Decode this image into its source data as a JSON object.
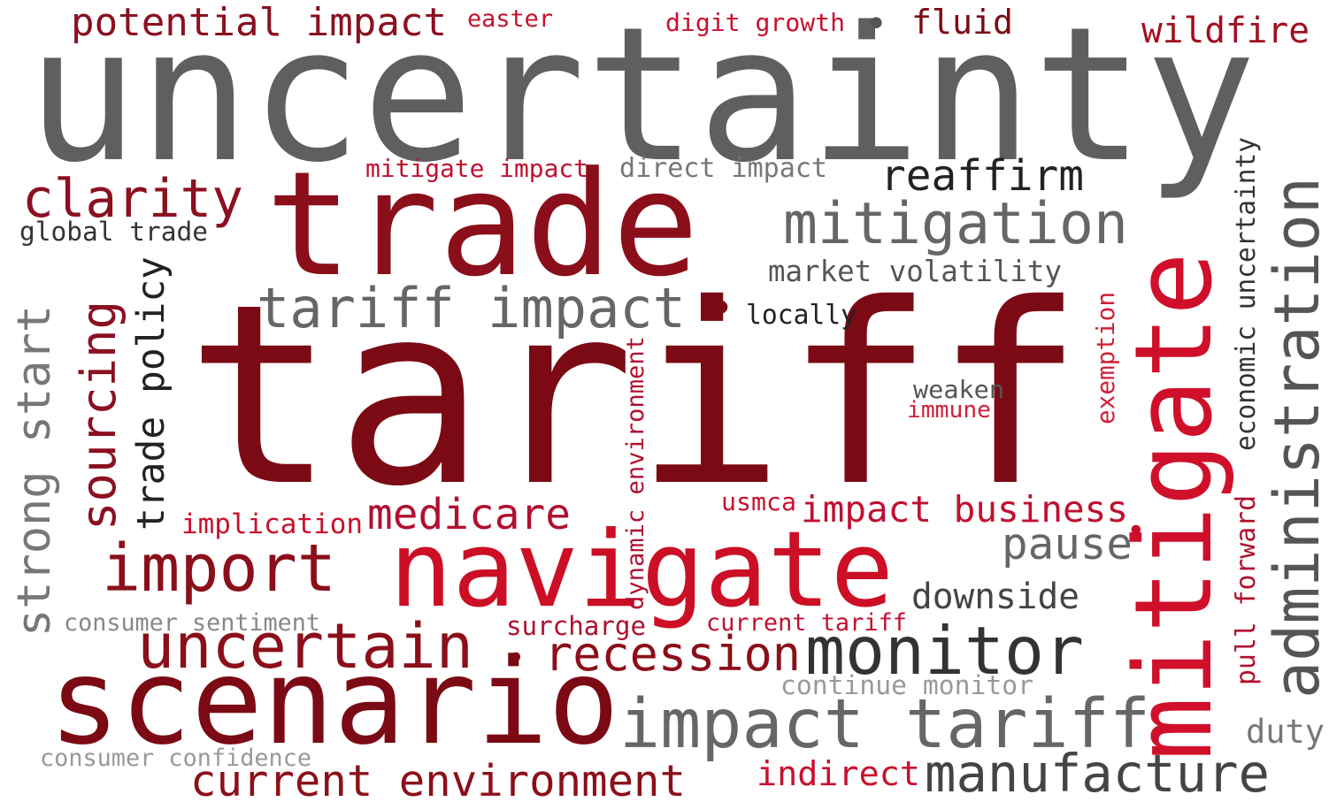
{
  "words": [
    "uncertainty",
    "tariff",
    "trade",
    "navigate",
    "scenario",
    "mitigate",
    "administration",
    "impact tariff",
    "monitor",
    "uncertain",
    "import",
    "manufacture",
    "current environment",
    "recession",
    "mitigation",
    "tariff impact",
    "clarity",
    "reaffirm",
    "potential impact",
    "fluid",
    "wildfire",
    "easter",
    "digit growth",
    "•",
    "•",
    "•",
    "•",
    "mitigate impact",
    "direct impact",
    "global trade",
    "market volatility",
    "locally",
    "trade policy",
    "sourcing",
    "strong start",
    "dynamic environment",
    "exemption",
    "economic uncertainty",
    "pull forward",
    "weaken",
    "immune",
    "implication",
    "medicare",
    "usmca",
    "impact business",
    "pause",
    "downside",
    "current tariff",
    "surcharge",
    "consumer sentiment",
    "continue monitor",
    "duty",
    "consumer confidence",
    "indirect"
  ]
}
